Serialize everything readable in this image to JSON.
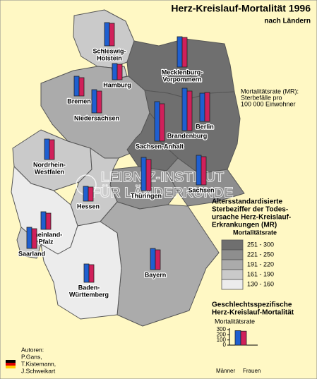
{
  "title": "Herz-Kreislauf-Mortalität 1996",
  "subtitle": "nach Ländern",
  "note": [
    "Mortalitätsrate (MR):",
    "Sterbefälle pro",
    "100 000 Einwohner"
  ],
  "watermark": [
    "LEIBNIZ-INSTITUT",
    "FÜR LÄNDERKUNDE"
  ],
  "states": [
    {
      "name": [
        "Schleswig-",
        "Holstein"
      ],
      "class": "161 - 190",
      "values": [
        165,
        160
      ]
    },
    {
      "name": [
        "Hamburg"
      ],
      "class": "161 - 190",
      "values": [
        115,
        110
      ]
    },
    {
      "name": [
        "Mecklenburg-",
        "Vorpommern"
      ],
      "class": "251 - 300",
      "values": [
        215,
        210
      ]
    },
    {
      "name": [
        "Bremen"
      ],
      "class": "191 - 220",
      "values": [
        140,
        130
      ]
    },
    {
      "name": [
        "Niedersachsen"
      ],
      "class": "191 - 220",
      "values": [
        165,
        155
      ]
    },
    {
      "name": [
        "Berlin"
      ],
      "class": "221 - 250",
      "values": [
        200,
        205
      ]
    },
    {
      "name": [
        "Brandenburg"
      ],
      "class": "251 - 300",
      "values": [
        300,
        280
      ]
    },
    {
      "name": [
        "Sachsen-Anhalt"
      ],
      "class": "251 - 300",
      "values": [
        280,
        265
      ]
    },
    {
      "name": [
        "Nordrhein-",
        "Westfalen"
      ],
      "class": "161 - 190",
      "values": [
        145,
        140
      ]
    },
    {
      "name": [
        "Thüringen"
      ],
      "class": "221 - 250",
      "values": [
        235,
        220
      ]
    },
    {
      "name": [
        "Sachsen"
      ],
      "class": "221 - 250",
      "values": [
        210,
        200
      ]
    },
    {
      "name": [
        "Hessen"
      ],
      "class": "161 - 190",
      "values": [
        105,
        100
      ]
    },
    {
      "name": [
        "Rheinland-",
        "Pfalz"
      ],
      "class": "130 - 160",
      "values": [
        125,
        115
      ]
    },
    {
      "name": [
        "Saarland"
      ],
      "class": "161 - 190",
      "values": [
        150,
        140
      ]
    },
    {
      "name": [
        "Bayern"
      ],
      "class": "191 - 220",
      "values": [
        150,
        140
      ]
    },
    {
      "name": [
        "Baden-",
        "Württemberg"
      ],
      "class": "130 - 160",
      "values": [
        130,
        125
      ]
    }
  ],
  "legend": {
    "title": [
      "Altersstandardisierte",
      "Sterbeziffer der Todes-",
      "ursache Herz-Kreislauf-",
      "Erkrankungen (MR)"
    ],
    "subtitle": "Mortalitätsrate",
    "classes": [
      {
        "label": "251 - 300",
        "color": "#6f6f6f"
      },
      {
        "label": "221 - 250",
        "color": "#8e8e8e"
      },
      {
        "label": "191 - 220",
        "color": "#ababab"
      },
      {
        "label": "161 - 190",
        "color": "#cacaca"
      },
      {
        "label": "130 - 160",
        "color": "#ececec"
      }
    ]
  },
  "chart_data": {
    "type": "bar",
    "title": [
      "Geschlechtsspezifische",
      "Herz-Kreislauf-Mortalität"
    ],
    "ylabel": "Mortalitätsrate",
    "categories": [
      "Männer",
      "Frauen"
    ],
    "values": [
      280,
      270
    ],
    "colors": [
      "#1f5fd0",
      "#d0205a"
    ],
    "ylim": [
      0,
      300
    ],
    "yticks": [
      0,
      100,
      200,
      300
    ]
  },
  "authors": [
    "Autoren:",
    "P.Gans,",
    "T.Kistemann,",
    "J.Schweikart"
  ]
}
